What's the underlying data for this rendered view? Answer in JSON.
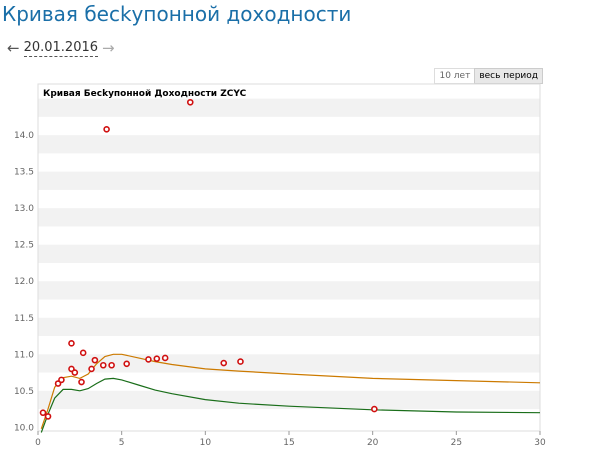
{
  "page": {
    "title": "Кривая бесkупонной доходности",
    "date": "20.01.2016",
    "prev_arrow": "←",
    "next_arrow": "→"
  },
  "period_tabs": [
    {
      "label": "10 лет",
      "active": false
    },
    {
      "label": "весь период",
      "active": true
    }
  ],
  "colors": {
    "title": "#1a6fa8",
    "orange_line": "#cc7a00",
    "green_line": "#1a6e1a",
    "points": "#d01010",
    "band": "#f2f2f2"
  },
  "chart_data": {
    "type": "scatter",
    "title": "Кривая Бесkупонной Доходности  ZCYC",
    "xlim": [
      0,
      30
    ],
    "ylim": [
      9.95,
      14.7
    ],
    "x_ticks": [
      0,
      5,
      10,
      15,
      20,
      25,
      30
    ],
    "y_ticks": [
      10.0,
      10.5,
      11.0,
      11.5,
      12.0,
      12.5,
      13.0,
      13.5,
      14.0
    ],
    "grid": "horizontal bands",
    "series": [
      {
        "kind": "points",
        "x": [
          0.3,
          0.6,
          1.2,
          1.4,
          2.0,
          2.0,
          2.2,
          2.6,
          2.7,
          3.2,
          3.4,
          3.9,
          4.1,
          4.4,
          5.3,
          6.6,
          7.1,
          7.6,
          9.1,
          11.1,
          12.1,
          20.1
        ],
        "y": [
          10.2,
          10.15,
          10.6,
          10.65,
          11.15,
          10.8,
          10.75,
          10.62,
          11.02,
          10.8,
          10.92,
          10.85,
          14.08,
          10.85,
          10.87,
          10.93,
          10.94,
          10.95,
          14.45,
          10.88,
          10.9,
          10.25
        ]
      },
      {
        "kind": "line",
        "color_key": "orange_line",
        "x": [
          0.2,
          0.6,
          1.0,
          1.5,
          2.0,
          2.5,
          3.0,
          3.5,
          4.0,
          4.5,
          5.0,
          6.0,
          7.0,
          8.0,
          10.0,
          12.0,
          15.0,
          20.0,
          25.0,
          30.0
        ],
        "y": [
          9.98,
          10.25,
          10.55,
          10.68,
          10.7,
          10.67,
          10.73,
          10.87,
          10.97,
          11.0,
          11.0,
          10.95,
          10.9,
          10.86,
          10.8,
          10.77,
          10.73,
          10.67,
          10.64,
          10.61
        ]
      },
      {
        "kind": "line",
        "color_key": "green_line",
        "x": [
          0.2,
          0.6,
          1.0,
          1.5,
          2.0,
          2.5,
          3.0,
          3.5,
          4.0,
          4.5,
          5.0,
          6.0,
          7.0,
          8.0,
          10.0,
          12.0,
          15.0,
          20.0,
          25.0,
          30.0
        ],
        "y": [
          9.93,
          10.18,
          10.4,
          10.52,
          10.52,
          10.5,
          10.53,
          10.6,
          10.66,
          10.67,
          10.65,
          10.58,
          10.51,
          10.46,
          10.38,
          10.33,
          10.29,
          10.24,
          10.21,
          10.2
        ]
      }
    ]
  }
}
